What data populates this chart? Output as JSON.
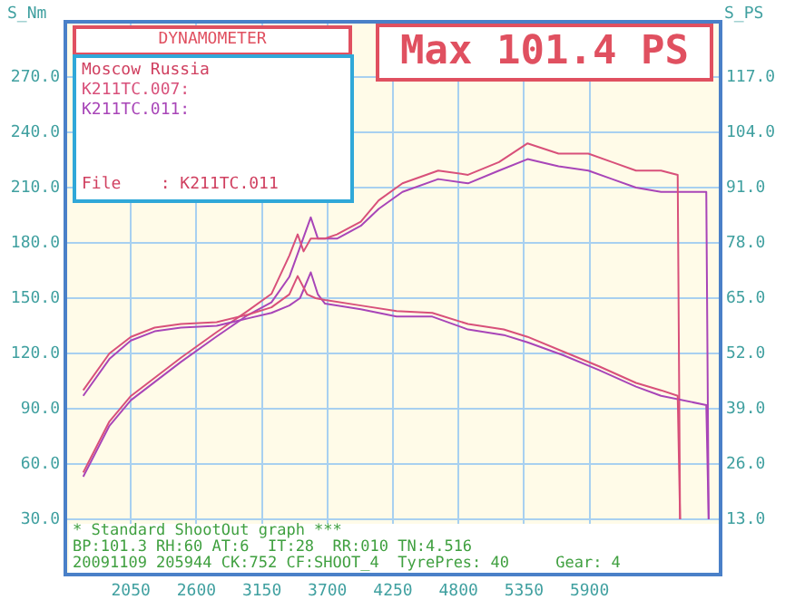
{
  "chart_data": {
    "type": "line",
    "title": "Max 101.4 PS",
    "subtitle": "DYNAMOMETER",
    "ylabel": "S_Nm",
    "y2label": "S_PS",
    "annotations": [
      "Moscow Russia",
      "File    : K211TC.011",
      "* Standard ShootOut graph ***",
      "BP:101.3 RH:60 AT:6  IT:28  RR:010 TN:4.516",
      "20091109 205944 CK:752 CF:SHOOT_4  TyrePres: 40     Gear: 4"
    ],
    "xlim": [
      1500,
      7000
    ],
    "xticks": [
      2050,
      2600,
      3150,
      3700,
      4250,
      4800,
      5350,
      5900
    ],
    "ylim": [
      0,
      300
    ],
    "yticks": [
      {
        "value": 30,
        "label": "30.0"
      },
      {
        "value": 60,
        "label": "60.0"
      },
      {
        "value": 90,
        "label": "90.0"
      },
      {
        "value": 120,
        "label": "120.0"
      },
      {
        "value": 150,
        "label": "150.0"
      },
      {
        "value": 180,
        "label": "180.0"
      },
      {
        "value": 210,
        "label": "210.0"
      },
      {
        "value": 240,
        "label": "240.0"
      },
      {
        "value": 270,
        "label": "270.0"
      }
    ],
    "y2lim": [
      0,
      130
    ],
    "y2ticks": [
      {
        "value": 13,
        "label": "13.0"
      },
      {
        "value": 26,
        "label": "26.0"
      },
      {
        "value": 39,
        "label": "39.0"
      },
      {
        "value": 52,
        "label": "52.0"
      },
      {
        "value": 65,
        "label": "65.0"
      },
      {
        "value": 78,
        "label": "78.0"
      },
      {
        "value": 91,
        "label": "91.0"
      },
      {
        "value": 104,
        "label": "104.0"
      },
      {
        "value": 117,
        "label": "117.0"
      }
    ],
    "grid": true,
    "legend": "top left",
    "marker": "none",
    "line_style": "solid",
    "series": [
      {
        "name": "K211TC.007:",
        "color": "#d8507a",
        "x": [
          1650,
          1870,
          2050,
          2250,
          2470,
          2770,
          3030,
          3230,
          3380,
          3450,
          3530,
          3600,
          3680,
          3980,
          4280,
          4580,
          4880,
          5180,
          5380,
          5680,
          5980,
          6290,
          6500,
          6640,
          6660
        ],
        "values": [
          100,
          120,
          129,
          134,
          136,
          137,
          141,
          145,
          152,
          162,
          152,
          150,
          149,
          146,
          143,
          142,
          136,
          133,
          129,
          121,
          113,
          104,
          100,
          97,
          30
        ]
      },
      {
        "name": "K211TC.011:",
        "color": "#a845b8",
        "x": [
          1650,
          1870,
          2050,
          2250,
          2470,
          2770,
          3030,
          3230,
          3380,
          3470,
          3560,
          3620,
          3680,
          3980,
          4280,
          4580,
          4880,
          5180,
          5380,
          5680,
          5980,
          6290,
          6500,
          6880,
          6900
        ],
        "values": [
          97,
          117,
          127,
          132,
          134,
          135,
          139,
          142,
          146,
          150,
          164,
          152,
          147,
          144,
          140,
          140,
          133,
          130,
          126,
          119,
          111,
          102,
          97,
          92,
          30
        ]
      },
      {
        "color": "#d8507a",
        "axis": "y2",
        "x": [
          1650,
          1870,
          2050,
          2470,
          2770,
          3030,
          3230,
          3380,
          3450,
          3500,
          3560,
          3680,
          3780,
          3980,
          4130,
          4330,
          4630,
          4880,
          5140,
          5380,
          5640,
          5890,
          6090,
          6290,
          6500,
          6640,
          6660
        ],
        "values": [
          24,
          36,
          42,
          51,
          57,
          62,
          66,
          75,
          80,
          76,
          79,
          79,
          80,
          83,
          88,
          92,
          95,
          94,
          97,
          101.4,
          99,
          99,
          97,
          95,
          95,
          94,
          13
        ]
      },
      {
        "color": "#a845b8",
        "axis": "y2",
        "x": [
          1650,
          1870,
          2050,
          2470,
          2770,
          3030,
          3230,
          3380,
          3560,
          3620,
          3780,
          3980,
          4130,
          4330,
          4630,
          4880,
          5140,
          5380,
          5640,
          5890,
          6090,
          6290,
          6500,
          6880,
          6900
        ],
        "values": [
          23,
          35,
          41,
          50,
          56,
          61,
          64,
          70,
          84,
          79,
          79,
          82,
          86,
          90,
          93,
          92,
          95,
          97.7,
          96,
          95,
          93,
          91,
          90,
          90,
          13
        ]
      }
    ]
  }
}
